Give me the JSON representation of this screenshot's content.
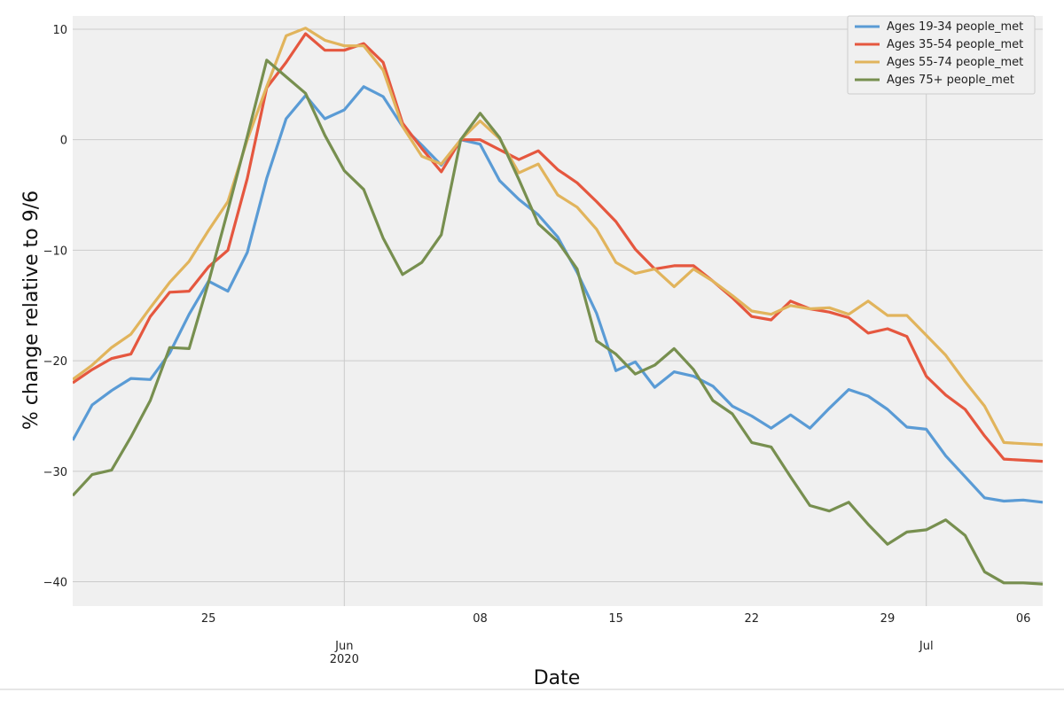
{
  "chart_data": {
    "type": "line",
    "xlabel": "Date",
    "ylabel": "% change relative to 9/6",
    "ylim": [
      -42.2,
      11.2
    ],
    "xlim": [
      "2020-05-18",
      "2020-07-07"
    ],
    "grid": true,
    "legend_placement": "top-right",
    "y_ticks": [
      10,
      0,
      -10,
      -20,
      -30,
      -40
    ],
    "y_tick_labels": [
      "10",
      "0",
      "−10",
      "−20",
      "−30",
      "−40"
    ],
    "x_ticks": [
      {
        "date": "2020-05-25",
        "label": "25",
        "sublabel": ""
      },
      {
        "date": "2020-06-01",
        "label": "Jun",
        "sublabel": "2020"
      },
      {
        "date": "2020-06-08",
        "label": "08",
        "sublabel": ""
      },
      {
        "date": "2020-06-15",
        "label": "15",
        "sublabel": ""
      },
      {
        "date": "2020-06-22",
        "label": "22",
        "sublabel": ""
      },
      {
        "date": "2020-06-29",
        "label": "29",
        "sublabel": ""
      },
      {
        "date": "2020-07-01",
        "label": "Jul",
        "sublabel": ""
      },
      {
        "date": "2020-07-06",
        "label": "06",
        "sublabel": ""
      }
    ],
    "dates": [
      "2020-05-18",
      "2020-05-19",
      "2020-05-20",
      "2020-05-21",
      "2020-05-22",
      "2020-05-23",
      "2020-05-24",
      "2020-05-25",
      "2020-05-26",
      "2020-05-27",
      "2020-05-28",
      "2020-05-29",
      "2020-05-30",
      "2020-05-31",
      "2020-06-01",
      "2020-06-02",
      "2020-06-03",
      "2020-06-04",
      "2020-06-05",
      "2020-06-06",
      "2020-06-07",
      "2020-06-08",
      "2020-06-09",
      "2020-06-10",
      "2020-06-11",
      "2020-06-12",
      "2020-06-13",
      "2020-06-14",
      "2020-06-15",
      "2020-06-16",
      "2020-06-17",
      "2020-06-18",
      "2020-06-19",
      "2020-06-20",
      "2020-06-21",
      "2020-06-22",
      "2020-06-23",
      "2020-06-24",
      "2020-06-25",
      "2020-06-26",
      "2020-06-27",
      "2020-06-28",
      "2020-06-29",
      "2020-06-30",
      "2020-07-01",
      "2020-07-02",
      "2020-07-03",
      "2020-07-04",
      "2020-07-05",
      "2020-07-06",
      "2020-07-07"
    ],
    "series": [
      {
        "name": "Ages 19-34 people_met",
        "color": "#5a9bd5",
        "values": [
          -27.2,
          -24.0,
          -22.7,
          -21.6,
          -21.7,
          -19.3,
          -15.8,
          -12.8,
          -13.7,
          -10.2,
          -3.5,
          1.9,
          4.0,
          1.9,
          2.7,
          4.8,
          3.9,
          1.2,
          -0.5,
          -2.3,
          0.0,
          -0.4,
          -3.7,
          -5.4,
          -6.8,
          -8.8,
          -12.0,
          -15.7,
          -20.9,
          -20.1,
          -22.4,
          -21.0,
          -21.4,
          -22.3,
          -24.1,
          -25.0,
          -26.1,
          -24.9,
          -26.1,
          -24.3,
          -22.6,
          -23.2,
          -24.4,
          -26.0,
          -26.2,
          -28.6,
          -30.5,
          -32.4,
          -32.7,
          -32.6,
          -32.8
        ]
      },
      {
        "name": "Ages 35-54 people_met",
        "color": "#e5573f",
        "values": [
          -22.0,
          -20.8,
          -19.8,
          -19.4,
          -16.0,
          -13.8,
          -13.7,
          -11.5,
          -10.0,
          -3.5,
          4.7,
          7.0,
          9.6,
          8.1,
          8.1,
          8.7,
          7.0,
          1.5,
          -0.8,
          -2.9,
          0.0,
          0.0,
          -0.9,
          -1.8,
          -1.0,
          -2.7,
          -3.9,
          -5.6,
          -7.4,
          -9.9,
          -11.7,
          -11.4,
          -11.4,
          -12.8,
          -14.3,
          -16.0,
          -16.3,
          -14.6,
          -15.3,
          -15.6,
          -16.1,
          -17.5,
          -17.1,
          -17.8,
          -21.4,
          -23.1,
          -24.4,
          -26.8,
          -28.9,
          -29.0,
          -29.1
        ]
      },
      {
        "name": "Ages 55-74 people_met",
        "color": "#e1b45c",
        "values": [
          -21.7,
          -20.4,
          -18.8,
          -17.6,
          -15.2,
          -12.9,
          -11.0,
          -8.2,
          -5.6,
          0.0,
          4.8,
          9.4,
          10.1,
          9.0,
          8.5,
          8.5,
          6.3,
          1.2,
          -1.5,
          -2.2,
          0.0,
          1.7,
          0.1,
          -3.0,
          -2.2,
          -5.0,
          -6.1,
          -8.1,
          -11.1,
          -12.1,
          -11.7,
          -13.3,
          -11.7,
          -12.8,
          -14.1,
          -15.5,
          -15.8,
          -15.0,
          -15.3,
          -15.2,
          -15.8,
          -14.6,
          -15.9,
          -15.9,
          -17.7,
          -19.5,
          -21.9,
          -24.1,
          -27.4,
          -27.5,
          -27.6
        ]
      },
      {
        "name": "Ages 75+ people_met",
        "color": "#778f4f",
        "values": [
          -32.2,
          -30.3,
          -29.9,
          -26.9,
          -23.6,
          -18.8,
          -18.9,
          -12.9,
          -6.4,
          0.3,
          7.2,
          5.7,
          4.2,
          0.4,
          -2.8,
          -4.5,
          -8.9,
          -12.2,
          -11.1,
          -8.6,
          0.0,
          2.4,
          0.2,
          -3.6,
          -7.6,
          -9.2,
          -11.7,
          -18.2,
          -19.4,
          -21.2,
          -20.4,
          -18.9,
          -20.8,
          -23.6,
          -24.8,
          -27.4,
          -27.8,
          -30.5,
          -33.1,
          -33.6,
          -32.8,
          -34.8,
          -36.6,
          -35.5,
          -35.3,
          -34.4,
          -35.8,
          -39.1,
          -40.1,
          -40.1,
          -40.2
        ]
      }
    ]
  }
}
